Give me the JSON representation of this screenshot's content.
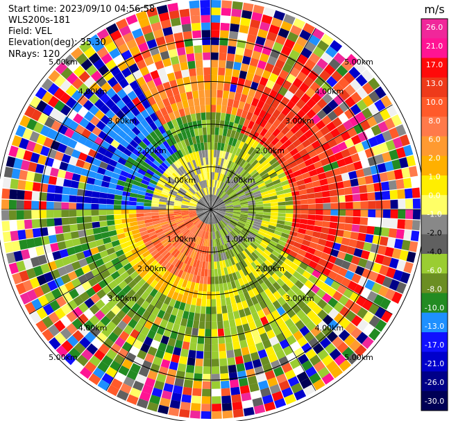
{
  "header": {
    "start_time": "Start time: 2023/09/10 04:56:58",
    "instrument": "WLS200s-181",
    "field": "Field: VEL",
    "elevation": "Elevation(deg): 35.30",
    "nrays": "NRays: 120"
  },
  "chart_data": {
    "type": "heatmap",
    "subtype": "radar-ppi-polar",
    "field": "VEL",
    "rays": 120,
    "range_rings_km": [
      1.0,
      2.0,
      3.0,
      4.0,
      5.0
    ],
    "ring_labels": [
      "1.00km",
      "2.00km",
      "3.00km",
      "4.00km",
      "5.00km"
    ],
    "colorbar": {
      "unit": "m/s",
      "ticks": [
        "26.0",
        "21.0",
        "17.0",
        "13.0",
        "10.0",
        "8.0",
        "6.0",
        "2.0",
        "1.0",
        "0.0",
        "-1.0",
        "-2.0",
        "-4.0",
        "-6.0",
        "-8.0",
        "-10.0",
        "-13.0",
        "-17.0",
        "-21.0",
        "-26.0",
        "-30.0"
      ],
      "colors": [
        "#f0279a",
        "#ff1493",
        "#ff0a0a",
        "#ee3a1a",
        "#ff5a2a",
        "#ff7a4a",
        "#ff9a30",
        "#ffb000",
        "#ffee00",
        "#ffff66",
        "#888888",
        "#606060",
        "#9acd32",
        "#6b8e23",
        "#228b22",
        "#1e90ff",
        "#1010ff",
        "#0000cc",
        "#000088",
        "#000055"
      ]
    }
  }
}
